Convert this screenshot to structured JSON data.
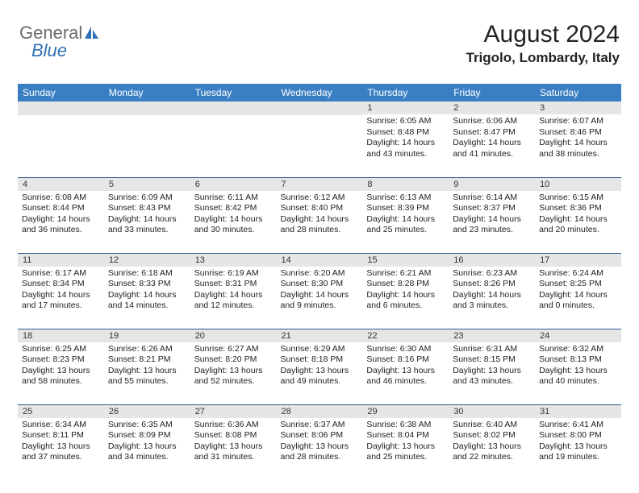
{
  "logo": {
    "general": "General",
    "blue": "Blue"
  },
  "header": {
    "month_title": "August 2024",
    "location": "Trigolo, Lombardy, Italy"
  },
  "colors": {
    "header_bg": "#3a7fc4",
    "header_text": "#ffffff",
    "daynum_bg": "#e6e6e6",
    "row_border": "#2a5b8f",
    "logo_gray": "#6a6a6a",
    "logo_blue": "#2e72b6"
  },
  "day_names": [
    "Sunday",
    "Monday",
    "Tuesday",
    "Wednesday",
    "Thursday",
    "Friday",
    "Saturday"
  ],
  "weeks": [
    [
      null,
      null,
      null,
      null,
      {
        "n": "1",
        "sr": "6:05 AM",
        "ss": "8:48 PM",
        "dl": "14 hours and 43 minutes."
      },
      {
        "n": "2",
        "sr": "6:06 AM",
        "ss": "8:47 PM",
        "dl": "14 hours and 41 minutes."
      },
      {
        "n": "3",
        "sr": "6:07 AM",
        "ss": "8:46 PM",
        "dl": "14 hours and 38 minutes."
      }
    ],
    [
      {
        "n": "4",
        "sr": "6:08 AM",
        "ss": "8:44 PM",
        "dl": "14 hours and 36 minutes."
      },
      {
        "n": "5",
        "sr": "6:09 AM",
        "ss": "8:43 PM",
        "dl": "14 hours and 33 minutes."
      },
      {
        "n": "6",
        "sr": "6:11 AM",
        "ss": "8:42 PM",
        "dl": "14 hours and 30 minutes."
      },
      {
        "n": "7",
        "sr": "6:12 AM",
        "ss": "8:40 PM",
        "dl": "14 hours and 28 minutes."
      },
      {
        "n": "8",
        "sr": "6:13 AM",
        "ss": "8:39 PM",
        "dl": "14 hours and 25 minutes."
      },
      {
        "n": "9",
        "sr": "6:14 AM",
        "ss": "8:37 PM",
        "dl": "14 hours and 23 minutes."
      },
      {
        "n": "10",
        "sr": "6:15 AM",
        "ss": "8:36 PM",
        "dl": "14 hours and 20 minutes."
      }
    ],
    [
      {
        "n": "11",
        "sr": "6:17 AM",
        "ss": "8:34 PM",
        "dl": "14 hours and 17 minutes."
      },
      {
        "n": "12",
        "sr": "6:18 AM",
        "ss": "8:33 PM",
        "dl": "14 hours and 14 minutes."
      },
      {
        "n": "13",
        "sr": "6:19 AM",
        "ss": "8:31 PM",
        "dl": "14 hours and 12 minutes."
      },
      {
        "n": "14",
        "sr": "6:20 AM",
        "ss": "8:30 PM",
        "dl": "14 hours and 9 minutes."
      },
      {
        "n": "15",
        "sr": "6:21 AM",
        "ss": "8:28 PM",
        "dl": "14 hours and 6 minutes."
      },
      {
        "n": "16",
        "sr": "6:23 AM",
        "ss": "8:26 PM",
        "dl": "14 hours and 3 minutes."
      },
      {
        "n": "17",
        "sr": "6:24 AM",
        "ss": "8:25 PM",
        "dl": "14 hours and 0 minutes."
      }
    ],
    [
      {
        "n": "18",
        "sr": "6:25 AM",
        "ss": "8:23 PM",
        "dl": "13 hours and 58 minutes."
      },
      {
        "n": "19",
        "sr": "6:26 AM",
        "ss": "8:21 PM",
        "dl": "13 hours and 55 minutes."
      },
      {
        "n": "20",
        "sr": "6:27 AM",
        "ss": "8:20 PM",
        "dl": "13 hours and 52 minutes."
      },
      {
        "n": "21",
        "sr": "6:29 AM",
        "ss": "8:18 PM",
        "dl": "13 hours and 49 minutes."
      },
      {
        "n": "22",
        "sr": "6:30 AM",
        "ss": "8:16 PM",
        "dl": "13 hours and 46 minutes."
      },
      {
        "n": "23",
        "sr": "6:31 AM",
        "ss": "8:15 PM",
        "dl": "13 hours and 43 minutes."
      },
      {
        "n": "24",
        "sr": "6:32 AM",
        "ss": "8:13 PM",
        "dl": "13 hours and 40 minutes."
      }
    ],
    [
      {
        "n": "25",
        "sr": "6:34 AM",
        "ss": "8:11 PM",
        "dl": "13 hours and 37 minutes."
      },
      {
        "n": "26",
        "sr": "6:35 AM",
        "ss": "8:09 PM",
        "dl": "13 hours and 34 minutes."
      },
      {
        "n": "27",
        "sr": "6:36 AM",
        "ss": "8:08 PM",
        "dl": "13 hours and 31 minutes."
      },
      {
        "n": "28",
        "sr": "6:37 AM",
        "ss": "8:06 PM",
        "dl": "13 hours and 28 minutes."
      },
      {
        "n": "29",
        "sr": "6:38 AM",
        "ss": "8:04 PM",
        "dl": "13 hours and 25 minutes."
      },
      {
        "n": "30",
        "sr": "6:40 AM",
        "ss": "8:02 PM",
        "dl": "13 hours and 22 minutes."
      },
      {
        "n": "31",
        "sr": "6:41 AM",
        "ss": "8:00 PM",
        "dl": "13 hours and 19 minutes."
      }
    ]
  ],
  "labels": {
    "sunrise": "Sunrise: ",
    "sunset": "Sunset: ",
    "daylight": "Daylight: "
  }
}
